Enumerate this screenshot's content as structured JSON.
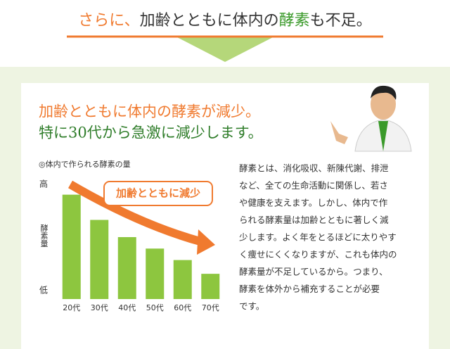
{
  "header": {
    "title_parts": [
      "さらに、",
      "加齢とともに体内の",
      "酵素",
      "も不足。"
    ]
  },
  "headline": [
    "加齢とともに体内の酵素が減少。",
    "特に30代から急激に減少します。"
  ],
  "chart_data": {
    "type": "bar",
    "title": "◎体内で作られる酵素の量",
    "ylabel": "酵素量",
    "annotation": "加齢とともに減少",
    "categories": [
      "20代",
      "30代",
      "40代",
      "50代",
      "60代",
      "70代"
    ],
    "values": [
      91,
      69,
      54,
      44,
      34,
      22
    ],
    "color": "#8dc63f",
    "ylim": [
      0,
      100
    ],
    "yticks": [
      {
        "value": 0,
        "label": "低"
      },
      {
        "value": 100,
        "label": "高"
      }
    ]
  },
  "body": [
    "酵素とは、消化吸収、新陳代謝、排泄",
    "など、全ての生命活動に関係し、若さ",
    "や健康を支えます。しかし、体内で作",
    "られる酵素量は加齢とともに著しく減",
    "少します。よく年をとるほどに太りやす",
    "く痩せにくくなりますが、これも体内の",
    "酵素量が不足しているから。つまり、",
    "酵素を体外から補充することが必要",
    "です。"
  ]
}
